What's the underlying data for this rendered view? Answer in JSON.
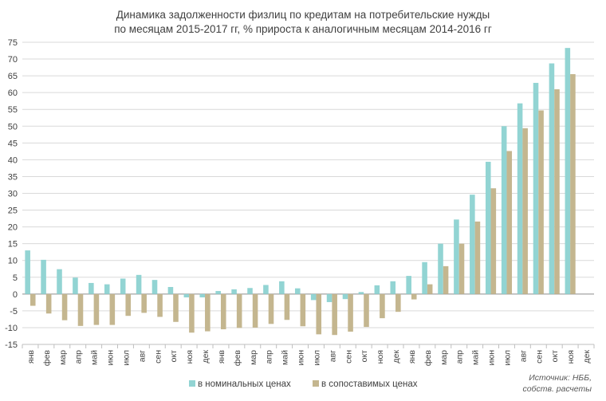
{
  "chart_data": {
    "type": "bar",
    "title": [
      "Динамика задолженности физлиц по кредитам на потребительские нужды",
      "по месяцам 2015-2017 гг, % прироста к аналогичным месяцам 2014-2016 гг"
    ],
    "categories": [
      "янв",
      "фев",
      "мар",
      "апр",
      "май",
      "июн",
      "июл",
      "авг",
      "сен",
      "окт",
      "ноя",
      "дек",
      "янв",
      "фев",
      "мар",
      "апр",
      "май",
      "июн",
      "июл",
      "авг",
      "сен",
      "окт",
      "ноя",
      "дек",
      "янв",
      "фев",
      "мар",
      "апр",
      "май",
      "июн",
      "июл",
      "авг",
      "сен",
      "окт",
      "ноя",
      "дек"
    ],
    "series": [
      {
        "name": "в номинальных ценах",
        "color": "#92d4d3",
        "values": [
          13,
          10.2,
          7.4,
          4.9,
          3.3,
          2.9,
          4.6,
          5.7,
          4.2,
          2.1,
          -1,
          -1,
          0.9,
          1.4,
          1.8,
          2.7,
          3.8,
          1.7,
          -1.8,
          -2.4,
          -1.5,
          0.6,
          2.6,
          3.8,
          5.4,
          9.5,
          15,
          22.2,
          29.6,
          39.4,
          50,
          56.8,
          62.9,
          68.7,
          73.3,
          0
        ]
      },
      {
        "name": "в сопоставимых ценах",
        "color": "#c4b68f",
        "values": [
          -3.5,
          -5.8,
          -7.8,
          -9.5,
          -9.2,
          -9.2,
          -6.5,
          -5.6,
          -6.8,
          -8.3,
          -11.5,
          -11.1,
          -10.5,
          -10.1,
          -10,
          -8.9,
          -7.7,
          -9.6,
          -12,
          -12.2,
          -11.2,
          -9.8,
          -7.2,
          -5.3,
          -1.6,
          2.9,
          8.3,
          15,
          21.6,
          31.5,
          42.6,
          49.4,
          54.7,
          61,
          65.5,
          0
        ]
      }
    ],
    "ylim": [
      -15,
      75
    ],
    "yticks": [
      -15,
      -10,
      -5,
      0,
      5,
      10,
      15,
      20,
      25,
      30,
      35,
      40,
      45,
      50,
      55,
      60,
      65,
      70,
      75
    ],
    "grid": true,
    "legend_position": "bottom"
  },
  "source_note": [
    "Источник: НББ,",
    "собств. расчеты"
  ]
}
